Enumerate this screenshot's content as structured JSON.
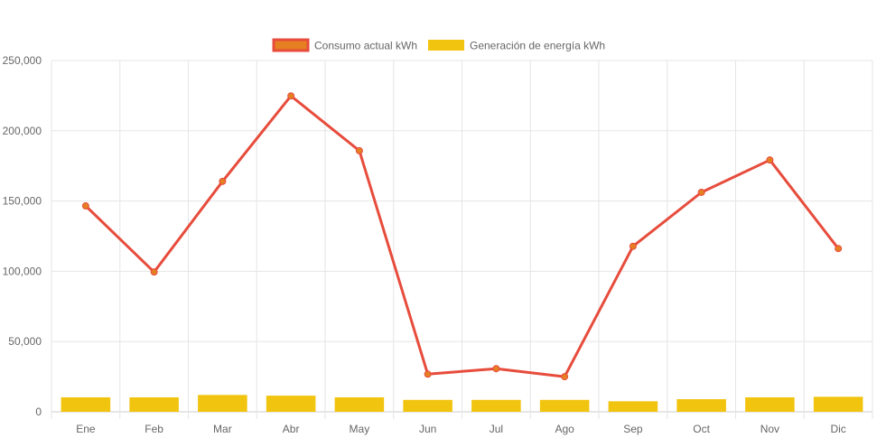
{
  "chart_data": {
    "type": "bar",
    "categories": [
      "Ene",
      "Feb",
      "Mar",
      "Abr",
      "May",
      "Jun",
      "Jul",
      "Ago",
      "Sep",
      "Oct",
      "Nov",
      "Dic"
    ],
    "series": [
      {
        "name": "Consumo actual kWh",
        "type": "line",
        "values": [
          146500,
          99500,
          164000,
          224800,
          185800,
          26800,
          30700,
          25000,
          117800,
          156200,
          179200,
          116200
        ]
      },
      {
        "name": "Generación de energía kWh",
        "type": "bar",
        "values": [
          10300,
          10300,
          12000,
          11500,
          10300,
          8500,
          8500,
          8500,
          7500,
          9000,
          10300,
          10700
        ]
      }
    ],
    "y_ticks": [
      "0",
      "50,000",
      "100,000",
      "150,000",
      "200,000",
      "250,000"
    ],
    "ylim": [
      0,
      250000
    ],
    "grid": true,
    "legend_position": "top-center",
    "colors": {
      "line": "#e74c3c",
      "line_point_fill": "#e67e22",
      "bar": "#f1c40f",
      "legend_line_fill": "#e67e22",
      "grid": "#e5e5e5",
      "axis_text": "#666666"
    }
  }
}
